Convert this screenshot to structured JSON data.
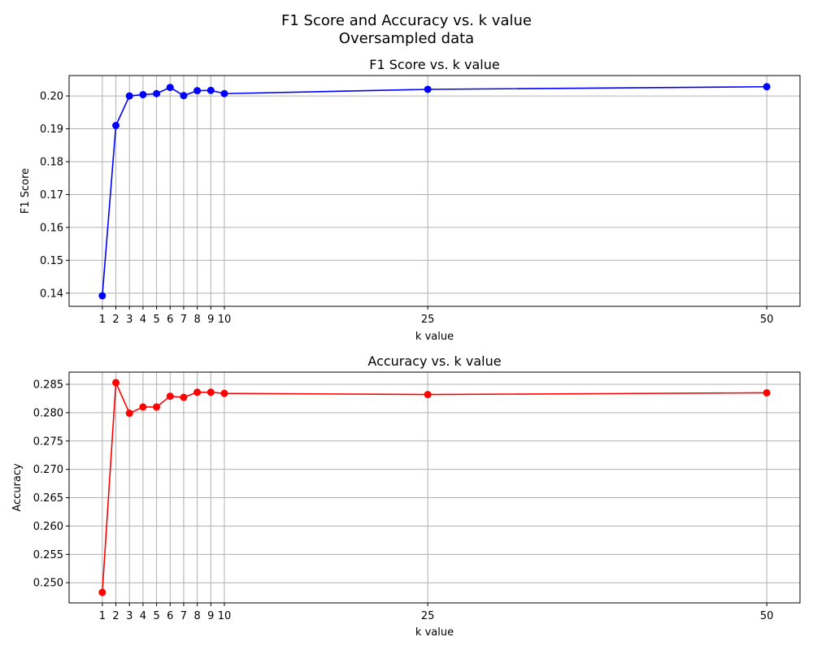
{
  "figure": {
    "suptitle_line1": "F1 Score and Accuracy vs. k value",
    "suptitle_line2": "Oversampled data"
  },
  "chart_data": [
    {
      "type": "line",
      "title": "F1 Score vs. k value",
      "xlabel": "k value",
      "ylabel": "F1 Score",
      "x": [
        1,
        2,
        3,
        4,
        5,
        6,
        7,
        8,
        9,
        10,
        25,
        50
      ],
      "y": [
        0.1392,
        0.191,
        0.2,
        0.2004,
        0.2007,
        0.2026,
        0.2001,
        0.2016,
        0.2017,
        0.2007,
        0.202,
        0.2028
      ],
      "xticks": [
        1,
        2,
        3,
        4,
        5,
        6,
        7,
        8,
        9,
        10,
        25,
        50
      ],
      "yticks": [
        0.14,
        0.15,
        0.16,
        0.17,
        0.18,
        0.19,
        0.2
      ],
      "ytick_labels": [
        "0.14",
        "0.15",
        "0.16",
        "0.17",
        "0.18",
        "0.19",
        "0.20"
      ],
      "xlim": [
        -1.45,
        52.45
      ],
      "ylim": [
        0.136,
        0.2062
      ],
      "grid": true,
      "color": "#0000ff",
      "marker": "circle"
    },
    {
      "type": "line",
      "title": "Accuracy vs. k value",
      "xlabel": "k value",
      "ylabel": "Accuracy",
      "x": [
        1,
        2,
        3,
        4,
        5,
        6,
        7,
        8,
        9,
        10,
        25,
        50
      ],
      "y": [
        0.2483,
        0.2853,
        0.2799,
        0.281,
        0.281,
        0.2829,
        0.2827,
        0.2836,
        0.2836,
        0.2834,
        0.2832,
        0.2835
      ],
      "xticks": [
        1,
        2,
        3,
        4,
        5,
        6,
        7,
        8,
        9,
        10,
        25,
        50
      ],
      "yticks": [
        0.25,
        0.255,
        0.26,
        0.265,
        0.27,
        0.275,
        0.28,
        0.285
      ],
      "ytick_labels": [
        "0.250",
        "0.255",
        "0.260",
        "0.265",
        "0.270",
        "0.275",
        "0.280",
        "0.285"
      ],
      "xlim": [
        -1.45,
        52.45
      ],
      "ylim": [
        0.24645,
        0.28715
      ],
      "grid": true,
      "color": "#ff0000",
      "marker": "circle"
    }
  ]
}
